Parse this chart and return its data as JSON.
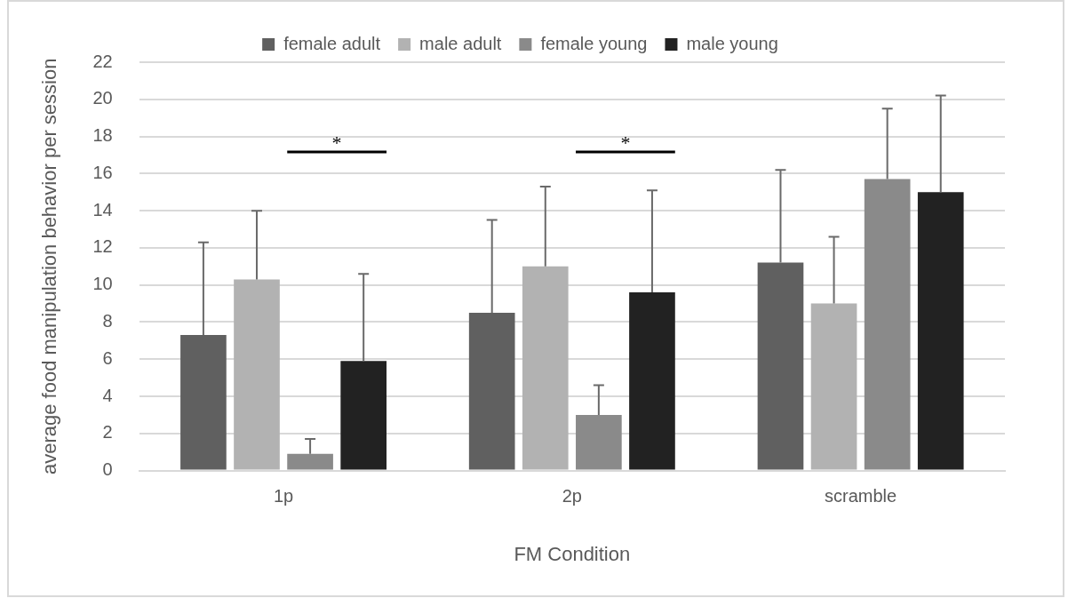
{
  "chart_data": {
    "type": "bar",
    "xlabel": "FM Condition",
    "ylabel": "average food manipulation behavior per session",
    "categories": [
      "1p",
      "2p",
      "scramble"
    ],
    "series": [
      {
        "name": "female adult",
        "color": "#606060",
        "values": [
          7.3,
          8.5,
          11.2
        ],
        "errors": [
          [
            7.3,
            12.3
          ],
          [
            8.5,
            13.5
          ],
          [
            11.2,
            16.2
          ]
        ]
      },
      {
        "name": "male adult",
        "color": "#b2b2b2",
        "values": [
          10.3,
          11.0,
          9.0
        ],
        "errors": [
          [
            10.3,
            14.0
          ],
          [
            11.0,
            15.3
          ],
          [
            9.0,
            12.6
          ]
        ]
      },
      {
        "name": "female young",
        "color": "#8a8a8a",
        "values": [
          0.9,
          3.0,
          15.7
        ],
        "errors": [
          [
            0.9,
            1.7
          ],
          [
            3.0,
            4.6
          ],
          [
            15.7,
            19.5
          ]
        ]
      },
      {
        "name": "male young",
        "color": "#222222",
        "values": [
          5.9,
          9.6,
          15.0
        ],
        "errors": [
          [
            5.9,
            10.6
          ],
          [
            9.6,
            15.1
          ],
          [
            15.0,
            20.2
          ]
        ]
      }
    ],
    "annotations": [
      "*",
      "*"
    ],
    "ylim": [
      0,
      22
    ],
    "yticks": [
      0,
      2,
      4,
      6,
      8,
      10,
      12,
      14,
      16,
      18,
      20,
      22
    ],
    "grid": "y",
    "legend": "top"
  }
}
